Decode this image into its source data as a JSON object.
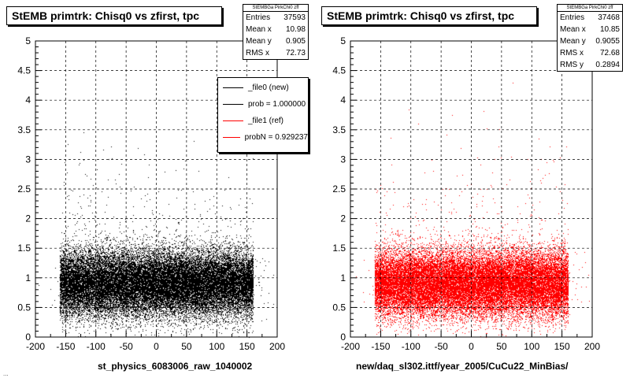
{
  "chart_data": [
    {
      "type": "scatter",
      "title": "StEMB primtrk: Chisq0 vs zfirst, tpc",
      "xlabel": "st_physics_6083006_raw_1040002",
      "ylabel": "",
      "xlim": [
        -200,
        200
      ],
      "ylim": [
        0,
        5
      ],
      "x_ticks": [
        "-200",
        "-150",
        "-100",
        "-50",
        "0",
        "50",
        "100",
        "150",
        "200"
      ],
      "y_ticks": [
        "0",
        "0.5",
        "1",
        "1.5",
        "2",
        "2.5",
        "3",
        "3.5",
        "4",
        "4.5",
        "5"
      ],
      "grid": true,
      "color": "#000000",
      "stats": {
        "name": "StEMBGa PirkChi0 zff",
        "entries_label": "Entries",
        "entries": "37593",
        "meanx_label": "Mean x",
        "meanx": "10.98",
        "meany_label": "Mean y",
        "meany": "0.905",
        "rmsx_label": "RMS x",
        "rmsx": "72.73"
      },
      "legend": {
        "placement": "top-right",
        "entries": [
          {
            "label": "_file0 (new)",
            "color": "#000000"
          },
          {
            "label": "prob = 1.000000",
            "color": "#000000"
          },
          {
            "label": "_file1 (ref)",
            "color": "#ff0000"
          },
          {
            "label": "probN = 0.929237",
            "color": "#ff0000"
          }
        ]
      },
      "distribution": {
        "x_mean": 10.98,
        "x_rms": 72.73,
        "x_range": [
          -160,
          160
        ],
        "y_mean": 0.905,
        "y_rms": 0.29,
        "n_points": 37593
      }
    },
    {
      "type": "scatter",
      "title": "StEMB primtrk: Chisq0 vs zfirst, tpc",
      "xlabel": "new/daq_sl302.ittf/year_2005/CuCu22_MinBias/",
      "ylabel": "",
      "xlim": [
        -200,
        200
      ],
      "ylim": [
        0,
        5
      ],
      "x_ticks": [
        "-200",
        "-150",
        "-100",
        "-50",
        "0",
        "50",
        "100",
        "150",
        "200"
      ],
      "y_ticks": [
        "0",
        "0.5",
        "1",
        "1.5",
        "2",
        "2.5",
        "3",
        "3.5",
        "4",
        "4.5",
        "5"
      ],
      "grid": true,
      "color": "#ff0000",
      "stats": {
        "name": "StEMBGa PirkChi0 zff",
        "entries_label": "Entries",
        "entries": "37468",
        "meanx_label": "Mean x",
        "meanx": "10.85",
        "meany_label": "Mean y",
        "meany": "0.9055",
        "rmsx_label": "RMS x",
        "rmsx": "72.68",
        "rmsy_label": "RMS y",
        "rmsy": "0.2894"
      },
      "distribution": {
        "x_mean": 10.85,
        "x_rms": 72.68,
        "x_range": [
          -160,
          160
        ],
        "y_mean": 0.9055,
        "y_rms": 0.2894,
        "n_points": 37468
      }
    }
  ],
  "footer_text": "..."
}
